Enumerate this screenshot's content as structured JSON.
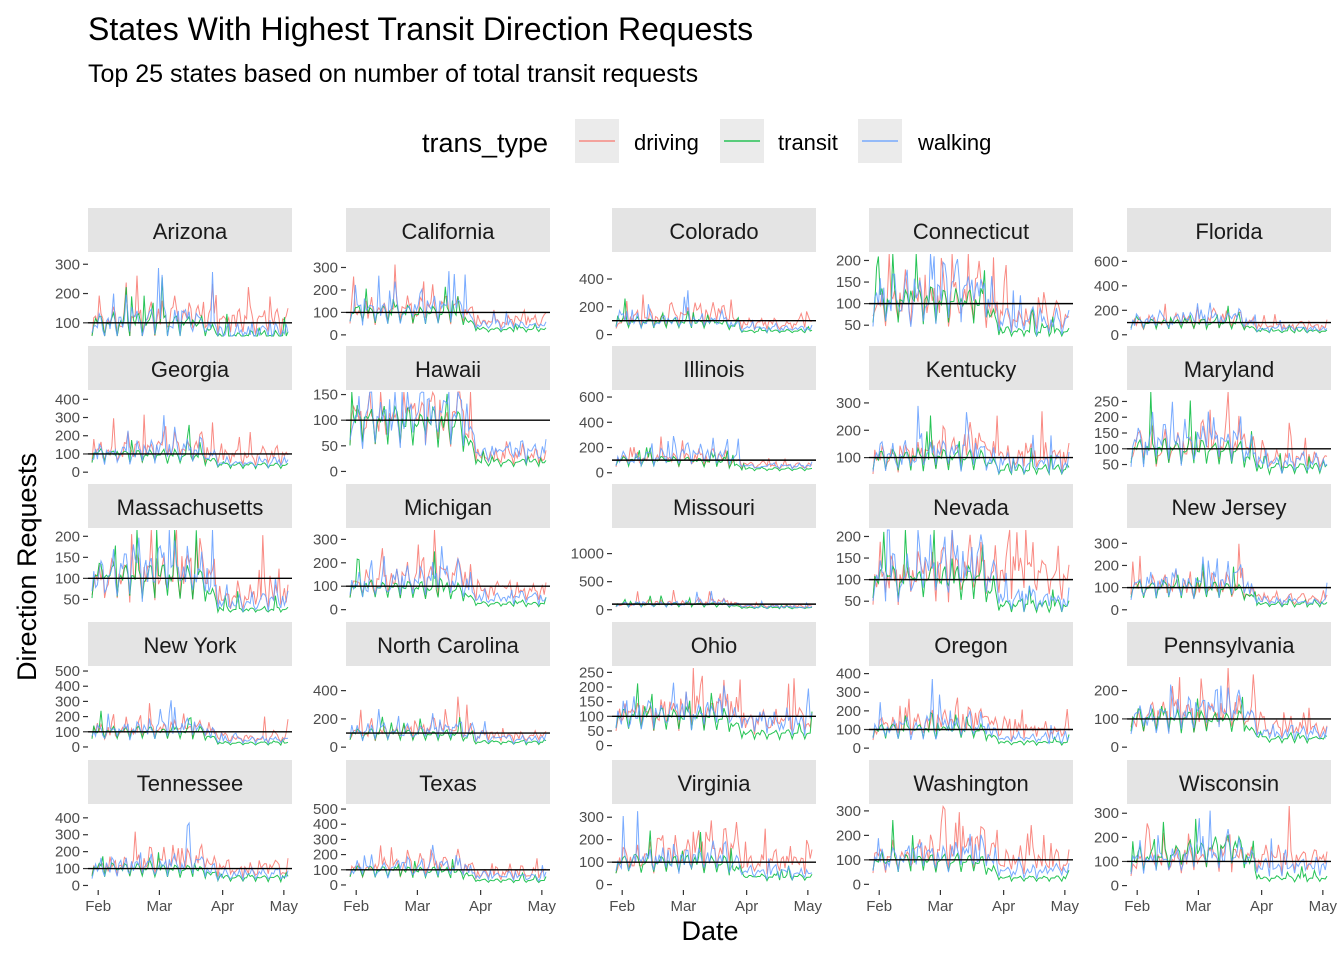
{
  "title": "States With Highest Transit Direction Requests",
  "subtitle": "Top 25 states based on number of total transit requests",
  "legend": {
    "title": "trans_type",
    "items": [
      {
        "label": "driving",
        "color": "#F8766D"
      },
      {
        "label": "transit",
        "color": "#00BA38"
      },
      {
        "label": "walking",
        "color": "#619CFF"
      }
    ]
  },
  "chart_data": {
    "type": "line",
    "facet_type": "small-multiples-5x5",
    "xlabel": "Date",
    "ylabel": "Direction Requests",
    "x_ticks": [
      "Feb",
      "Mar",
      "Apr",
      "May"
    ],
    "x_range": [
      "2020-01-13",
      "2020-05-01"
    ],
    "baseline": 100,
    "series_names": [
      "driving",
      "transit",
      "walking"
    ],
    "series_colors": {
      "driving": "#F8766D",
      "transit": "#00BA38",
      "walking": "#619CFF"
    },
    "panels": [
      {
        "state": "Arizona",
        "ylim": [
          55,
          335
        ],
        "yticks": [
          100,
          200,
          300
        ],
        "levels": {
          "driving": [
            100,
            130,
            105
          ],
          "transit": [
            100,
            95,
            55
          ],
          "walking": [
            100,
            115,
            65
          ]
        }
      },
      {
        "state": "California",
        "ylim": [
          -5,
          360
        ],
        "yticks": [
          0,
          100,
          200,
          300
        ],
        "levels": {
          "driving": [
            100,
            120,
            65
          ],
          "transit": [
            100,
            95,
            25
          ],
          "walking": [
            100,
            140,
            45
          ]
        }
      },
      {
        "state": "Colorado",
        "ylim": [
          -10,
          580
        ],
        "yticks": [
          0,
          200,
          400
        ],
        "levels": {
          "driving": [
            100,
            150,
            75
          ],
          "transit": [
            100,
            80,
            25
          ],
          "walking": [
            100,
            110,
            45
          ]
        }
      },
      {
        "state": "Connecticut",
        "ylim": [
          25,
          215
        ],
        "yticks": [
          50,
          100,
          150,
          200
        ],
        "levels": {
          "driving": [
            100,
            115,
            70
          ],
          "transit": [
            100,
            105,
            35
          ],
          "walking": [
            100,
            140,
            60
          ]
        }
      },
      {
        "state": "Florida",
        "ylim": [
          -10,
          660
        ],
        "yticks": [
          0,
          200,
          400,
          600
        ],
        "levels": {
          "driving": [
            100,
            140,
            70
          ],
          "transit": [
            100,
            90,
            30
          ],
          "walking": [
            100,
            150,
            50
          ]
        }
      },
      {
        "state": "Georgia",
        "ylim": [
          -10,
          440
        ],
        "yticks": [
          0,
          100,
          200,
          300,
          400
        ],
        "levels": {
          "driving": [
            100,
            150,
            90
          ],
          "transit": [
            100,
            90,
            40
          ],
          "walking": [
            100,
            130,
            55
          ]
        }
      },
      {
        "state": "Hawaii",
        "ylim": [
          -5,
          155
        ],
        "yticks": [
          0,
          50,
          100,
          150
        ],
        "levels": {
          "driving": [
            100,
            110,
            30
          ],
          "transit": [
            100,
            90,
            18
          ],
          "walking": [
            100,
            125,
            40
          ]
        }
      },
      {
        "state": "Illinois",
        "ylim": [
          -10,
          640
        ],
        "yticks": [
          0,
          200,
          400,
          600
        ],
        "levels": {
          "driving": [
            100,
            120,
            60
          ],
          "transit": [
            100,
            90,
            30
          ],
          "walking": [
            100,
            170,
            55
          ]
        }
      },
      {
        "state": "Kentucky",
        "ylim": [
          40,
          340
        ],
        "yticks": [
          100,
          200,
          300
        ],
        "levels": {
          "driving": [
            100,
            150,
            100
          ],
          "transit": [
            100,
            95,
            55
          ],
          "walking": [
            100,
            120,
            80
          ]
        }
      },
      {
        "state": "Maryland",
        "ylim": [
          20,
          280
        ],
        "yticks": [
          50,
          100,
          150,
          200,
          250
        ],
        "levels": {
          "driving": [
            100,
            135,
            65
          ],
          "transit": [
            100,
            95,
            40
          ],
          "walking": [
            100,
            140,
            55
          ]
        }
      },
      {
        "state": "Massachusetts",
        "ylim": [
          20,
          215
        ],
        "yticks": [
          50,
          100,
          150,
          200
        ],
        "levels": {
          "driving": [
            100,
            125,
            60
          ],
          "transit": [
            100,
            100,
            25
          ],
          "walking": [
            100,
            130,
            45
          ]
        }
      },
      {
        "state": "Michigan",
        "ylim": [
          -10,
          340
        ],
        "yticks": [
          0,
          100,
          200,
          300
        ],
        "levels": {
          "driving": [
            100,
            160,
            85
          ],
          "transit": [
            100,
            85,
            25
          ],
          "walking": [
            100,
            140,
            50
          ]
        }
      },
      {
        "state": "Missouri",
        "ylim": [
          -40,
          1420
        ],
        "yticks": [
          0,
          500,
          1000
        ],
        "levels": {
          "driving": [
            100,
            140,
            60
          ],
          "transit": [
            100,
            90,
            35
          ],
          "walking": [
            100,
            120,
            50
          ]
        }
      },
      {
        "state": "Nevada",
        "ylim": [
          25,
          215
        ],
        "yticks": [
          50,
          100,
          150,
          200
        ],
        "levels": {
          "driving": [
            100,
            130,
            120
          ],
          "transit": [
            100,
            100,
            40
          ],
          "walking": [
            100,
            140,
            55
          ]
        }
      },
      {
        "state": "New Jersey",
        "ylim": [
          -10,
          360
        ],
        "yticks": [
          0,
          100,
          200,
          300
        ],
        "levels": {
          "driving": [
            100,
            115,
            50
          ],
          "transit": [
            100,
            95,
            25
          ],
          "walking": [
            100,
            140,
            40
          ]
        }
      },
      {
        "state": "New York",
        "ylim": [
          -20,
          520
        ],
        "yticks": [
          0,
          100,
          200,
          300,
          400,
          500
        ],
        "levels": {
          "driving": [
            100,
            120,
            60
          ],
          "transit": [
            100,
            100,
            25
          ],
          "walking": [
            100,
            130,
            45
          ]
        }
      },
      {
        "state": "North Carolina",
        "ylim": [
          -20,
          560
        ],
        "yticks": [
          0,
          200,
          400
        ],
        "levels": {
          "driving": [
            100,
            140,
            85
          ],
          "transit": [
            100,
            90,
            35
          ],
          "walking": [
            100,
            130,
            60
          ]
        }
      },
      {
        "state": "Ohio",
        "ylim": [
          -15,
          265
        ],
        "yticks": [
          0,
          50,
          100,
          150,
          200,
          250
        ],
        "levels": {
          "driving": [
            100,
            140,
            85
          ],
          "transit": [
            100,
            95,
            40
          ],
          "walking": [
            100,
            130,
            80
          ]
        }
      },
      {
        "state": "Oregon",
        "ylim": [
          -10,
          430
        ],
        "yticks": [
          0,
          100,
          200,
          300,
          400
        ],
        "levels": {
          "driving": [
            100,
            150,
            100
          ],
          "transit": [
            100,
            95,
            30
          ],
          "walking": [
            100,
            130,
            55
          ]
        }
      },
      {
        "state": "Pennsylvania",
        "ylim": [
          -10,
          280
        ],
        "yticks": [
          0,
          100,
          200
        ],
        "levels": {
          "driving": [
            100,
            130,
            70
          ],
          "transit": [
            100,
            95,
            30
          ],
          "walking": [
            100,
            140,
            50
          ]
        }
      },
      {
        "state": "Tennessee",
        "ylim": [
          -15,
          470
        ],
        "yticks": [
          0,
          100,
          200,
          300,
          400
        ],
        "levels": {
          "driving": [
            100,
            160,
            100
          ],
          "transit": [
            100,
            90,
            45
          ],
          "walking": [
            100,
            130,
            65
          ]
        }
      },
      {
        "state": "Texas",
        "ylim": [
          -20,
          520
        ],
        "yticks": [
          0,
          100,
          200,
          300,
          400,
          500
        ],
        "levels": {
          "driving": [
            100,
            150,
            80
          ],
          "transit": [
            100,
            85,
            30
          ],
          "walking": [
            100,
            130,
            55
          ]
        }
      },
      {
        "state": "Virginia",
        "ylim": [
          -15,
          350
        ],
        "yticks": [
          0,
          100,
          200,
          300
        ],
        "levels": {
          "driving": [
            100,
            170,
            100
          ],
          "transit": [
            100,
            95,
            35
          ],
          "walking": [
            100,
            130,
            55
          ]
        }
      },
      {
        "state": "Washington",
        "ylim": [
          -15,
          320
        ],
        "yticks": [
          0,
          100,
          200,
          300
        ],
        "levels": {
          "driving": [
            100,
            160,
            95
          ],
          "transit": [
            100,
            90,
            25
          ],
          "walking": [
            100,
            130,
            55
          ]
        }
      },
      {
        "state": "Wisconsin",
        "ylim": [
          -10,
          330
        ],
        "yticks": [
          0,
          100,
          200,
          300
        ],
        "levels": {
          "driving": [
            100,
            130,
            110
          ],
          "transit": [
            100,
            170,
            30
          ],
          "walking": [
            100,
            150,
            80
          ]
        }
      }
    ]
  }
}
